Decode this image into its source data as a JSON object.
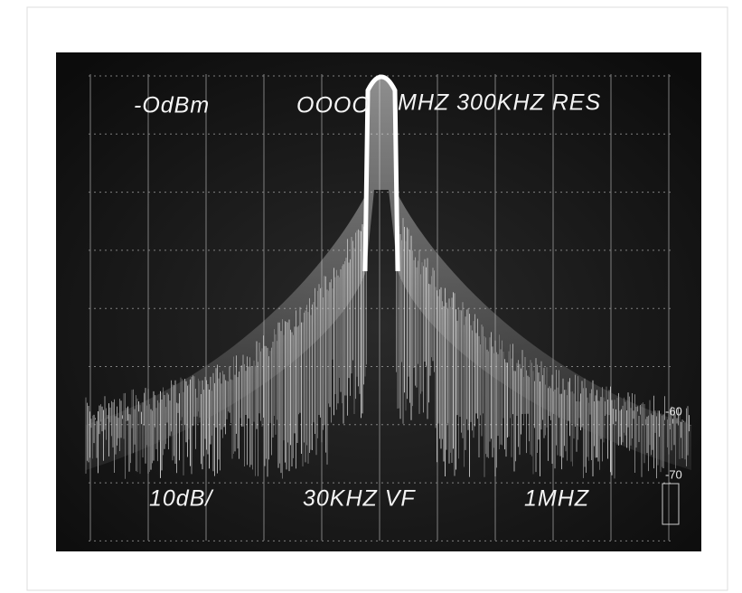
{
  "screen_text": {
    "top_left": "-OdBm",
    "top_center": "OOOO",
    "top_right": "MHZ 300KHZ RES",
    "bottom_left": "10dB/",
    "bottom_center": "30KHZ VF",
    "bottom_right": "1MHZ"
  },
  "scale_labels": [
    "-60",
    "-70"
  ]
}
